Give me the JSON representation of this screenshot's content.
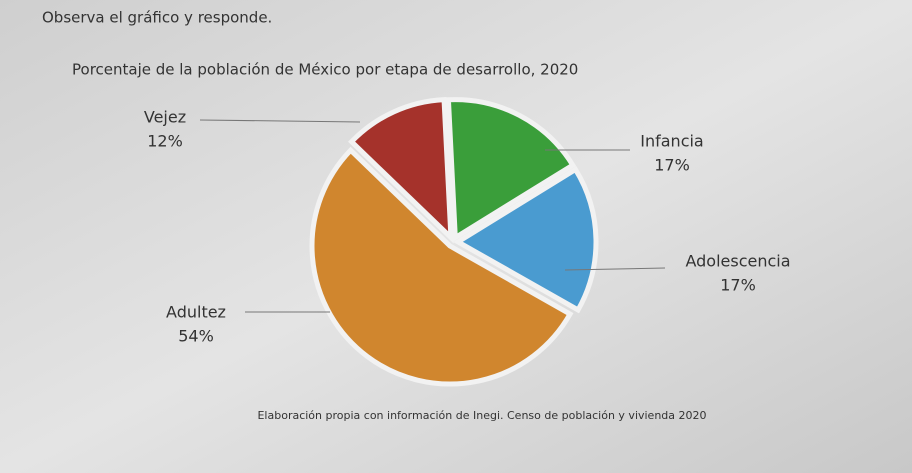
{
  "instruction": "Observa el gráfico y responde.",
  "chart_data": {
    "type": "pie",
    "title": "Porcentaje de la población de México por etapa de desarrollo, 2020",
    "categories": [
      "Infancia",
      "Adolescencia",
      "Adultez",
      "Vejez"
    ],
    "values": [
      17,
      17,
      54,
      12
    ],
    "value_labels": [
      "17%",
      "17%",
      "54%",
      "12%"
    ],
    "colors": [
      "#3a9e3a",
      "#4a9bd0",
      "#d0862e",
      "#a5322b"
    ],
    "source": "Elaboración propia con información de Inegi. Censo de población y vivienda 2020"
  }
}
